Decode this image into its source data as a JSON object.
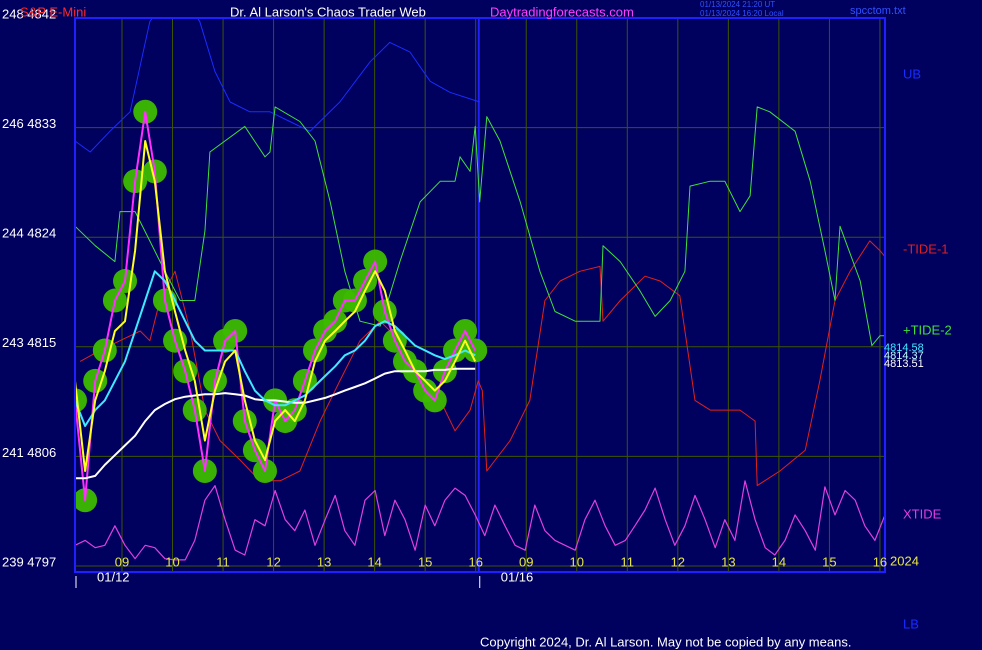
{
  "chart_data": {
    "type": "line",
    "instrument": "S&P E-Mini",
    "title": "Dr. Al Larson's Chaos Trader Web",
    "site": "Daytradingforecasts.com",
    "timestamps": [
      "01/13/2024 21:20 UT",
      "01/13/2024 16:20 Local"
    ],
    "file": "spcctom.txt",
    "copyright": "Copyright 2024, Dr. Al Larson. May not be copied by any means.",
    "year_label": "2024",
    "lower_label": "LB",
    "grid": true,
    "xlim": [
      -0.93,
      15.1
    ],
    "xticks": [
      {
        "value": 0,
        "label": "09"
      },
      {
        "value": 1,
        "label": "10"
      },
      {
        "value": 2,
        "label": "11"
      },
      {
        "value": 3,
        "label": "12"
      },
      {
        "value": 4,
        "label": "13"
      },
      {
        "value": 5,
        "label": "14"
      },
      {
        "value": 6,
        "label": "15"
      },
      {
        "value": 7,
        "label": "16"
      },
      {
        "value": 8,
        "label": "09"
      },
      {
        "value": 9,
        "label": "10"
      },
      {
        "value": 10,
        "label": "11"
      },
      {
        "value": 11,
        "label": "12"
      },
      {
        "value": 12,
        "label": "13"
      },
      {
        "value": 13,
        "label": "14"
      },
      {
        "value": 14,
        "label": "15"
      },
      {
        "value": 15,
        "label": "16"
      }
    ],
    "dates": [
      {
        "value": -0.93,
        "label": "01/12"
      },
      {
        "value": 7.06,
        "label": "01/16"
      }
    ],
    "ylim": [
      4797,
      4842
    ],
    "yticks": [
      {
        "value": 4842,
        "label": "248 4842"
      },
      {
        "value": 4833,
        "label": "246 4833"
      },
      {
        "value": 4824,
        "label": "244 4824"
      },
      {
        "value": 4815,
        "label": "243 4815"
      },
      {
        "value": 4806,
        "label": "241 4806"
      },
      {
        "value": 4797,
        "label": "239 4797"
      }
    ],
    "x": [
      -0.93,
      -0.73,
      -0.53,
      -0.34,
      -0.14,
      0.06,
      0.26,
      0.46,
      0.65,
      0.85,
      1.05,
      1.25,
      1.44,
      1.64,
      1.84,
      2.04,
      2.24,
      2.43,
      2.63,
      2.83,
      3.03,
      3.23,
      3.42,
      3.62,
      3.82,
      4.02,
      4.22,
      4.41,
      4.61,
      4.81,
      5.01,
      5.2,
      5.4,
      5.6,
      5.8,
      6.0,
      6.19,
      6.39,
      6.59,
      6.79,
      6.99
    ],
    "series": [
      {
        "name": "UB",
        "color": "#1a2cff",
        "x": [
          -0.93,
          -0.63,
          -0.24,
          0.16,
          0.55,
          0.75,
          1.35,
          1.54,
          1.84,
          2.14,
          2.53,
          2.93,
          3.32,
          3.72,
          4.31,
          4.91,
          5.3,
          5.7,
          6.1,
          6.49,
          7.08
        ],
        "values": [
          4831.9,
          4831.0,
          4832.7,
          4834.3,
          4841.7,
          4842.9,
          4842.9,
          4841.7,
          4837.6,
          4835.1,
          4834.3,
          4834.3,
          4833.5,
          4832.7,
          4835.1,
          4838.4,
          4840.0,
          4839.2,
          4836.8,
          4835.9,
          4835.1
        ]
      },
      {
        "name": "-TIDE-1",
        "color": "#e02020",
        "x": [
          -0.83,
          -0.44,
          -0.04,
          0.36,
          0.55,
          0.75,
          1.05,
          1.35,
          1.64,
          1.94,
          2.34,
          2.73,
          3.13,
          3.52,
          3.92,
          4.31,
          4.71,
          5.11,
          5.5,
          5.9,
          6.3,
          6.59,
          6.89,
          7.05,
          7.13,
          7.22,
          7.68,
          8.07,
          8.37,
          8.67,
          9.06,
          9.46,
          9.52,
          9.86,
          10.35,
          10.65,
          11.04,
          11.34,
          11.64,
          12.23,
          12.53,
          12.57,
          13.02,
          13.52,
          13.81,
          14.11,
          14.41,
          14.8,
          15.0,
          15.1
        ],
        "values": [
          4813.8,
          4814.7,
          4815.5,
          4816.3,
          4815.5,
          4818.8,
          4821.2,
          4816.3,
          4809.8,
          4807.3,
          4805.7,
          4804.0,
          4804.0,
          4804.8,
          4808.9,
          4812.2,
          4815.5,
          4817.1,
          4815.5,
          4812.2,
          4810.6,
          4808.1,
          4809.8,
          4812.2,
          4811.4,
          4804.8,
          4807.3,
          4810.6,
          4818.8,
          4820.4,
          4821.2,
          4821.6,
          4817.1,
          4818.8,
          4820.8,
          4820.4,
          4819.2,
          4810.6,
          4809.8,
          4809.8,
          4808.9,
          4803.6,
          4804.8,
          4806.5,
          4812.2,
          4818.8,
          4821.2,
          4823.7,
          4822.9,
          4822.4
        ]
      },
      {
        "name": "+TIDE-2",
        "color": "#40e040",
        "x": [
          -0.93,
          -0.53,
          -0.14,
          -0.04,
          0.26,
          0.55,
          0.85,
          1.15,
          1.44,
          1.64,
          1.74,
          2.43,
          2.83,
          2.93,
          3.03,
          3.52,
          3.82,
          4.12,
          4.41,
          4.71,
          5.11,
          5.5,
          5.9,
          6.3,
          6.59,
          6.69,
          6.89,
          6.99,
          7.08,
          7.22,
          7.48,
          7.88,
          8.27,
          8.57,
          8.97,
          9.46,
          9.52,
          9.86,
          10.25,
          10.55,
          10.85,
          11.14,
          11.24,
          11.64,
          11.93,
          12.23,
          12.43,
          12.57,
          12.82,
          13.32,
          13.62,
          13.91,
          14.11,
          14.21,
          14.61,
          14.84,
          15.0,
          15.1
        ],
        "values": [
          4824.9,
          4823.3,
          4822.0,
          4826.1,
          4826.1,
          4823.7,
          4821.2,
          4818.8,
          4818.8,
          4824.5,
          4831.0,
          4833.1,
          4830.6,
          4831.0,
          4834.7,
          4833.5,
          4831.9,
          4826.9,
          4821.2,
          4817.1,
          4816.7,
          4822.0,
          4826.9,
          4828.6,
          4828.6,
          4830.6,
          4829.4,
          4833.1,
          4826.9,
          4833.9,
          4831.9,
          4826.9,
          4821.2,
          4817.9,
          4817.1,
          4817.1,
          4823.3,
          4822.0,
          4819.6,
          4817.5,
          4818.8,
          4821.2,
          4828.2,
          4828.6,
          4828.6,
          4826.1,
          4827.4,
          4834.7,
          4834.3,
          4832.7,
          4828.6,
          4822.9,
          4818.8,
          4824.9,
          4820.4,
          4815.1,
          4815.9,
          4815.9
        ]
      },
      {
        "name": "XTIDE",
        "color": "#e040e0",
        "x": [
          -0.93,
          -0.73,
          -0.53,
          -0.34,
          -0.14,
          0.06,
          0.26,
          0.46,
          0.65,
          0.85,
          1.05,
          1.25,
          1.44,
          1.64,
          1.84,
          2.04,
          2.24,
          2.43,
          2.63,
          2.83,
          3.03,
          3.23,
          3.42,
          3.62,
          3.82,
          4.02,
          4.22,
          4.41,
          4.61,
          4.81,
          5.01,
          5.2,
          5.4,
          5.6,
          5.8,
          6.0,
          6.19,
          6.39,
          6.59,
          6.79,
          6.99,
          7.18,
          7.38,
          7.58,
          7.78,
          7.98,
          8.17,
          8.37,
          8.57,
          8.77,
          8.97,
          9.16,
          9.36,
          9.56,
          9.76,
          9.96,
          10.15,
          10.35,
          10.55,
          10.75,
          10.94,
          11.14,
          11.34,
          11.54,
          11.74,
          11.93,
          12.13,
          12.33,
          12.53,
          12.73,
          12.92,
          13.12,
          13.32,
          13.52,
          13.72,
          13.91,
          14.11,
          14.31,
          14.51,
          14.7,
          14.9,
          15.1
        ],
        "values": [
          4798.7,
          4799.1,
          4798.5,
          4798.7,
          4800.3,
          4798.7,
          4797.6,
          4798.7,
          4798.5,
          4797.6,
          4797.5,
          4797.5,
          4799.1,
          4802.4,
          4803.6,
          4800.8,
          4798.3,
          4797.9,
          4800.8,
          4800.3,
          4803.2,
          4800.8,
          4799.9,
          4801.6,
          4798.7,
          4800.8,
          4802.8,
          4799.9,
          4798.7,
          4802.4,
          4803.2,
          4799.5,
          4802.4,
          4800.8,
          4798.3,
          4802.0,
          4800.3,
          4802.4,
          4803.4,
          4802.8,
          4801.2,
          4799.5,
          4802.0,
          4800.3,
          4798.7,
          4798.3,
          4802.0,
          4799.9,
          4799.1,
          4798.7,
          4798.3,
          4800.8,
          4802.4,
          4800.3,
          4798.7,
          4799.1,
          4800.3,
          4801.6,
          4803.4,
          4800.8,
          4798.7,
          4800.3,
          4802.8,
          4800.8,
          4798.5,
          4800.8,
          4799.1,
          4804.0,
          4800.8,
          4798.5,
          4797.9,
          4799.1,
          4801.2,
          4799.9,
          4798.3,
          4803.5,
          4801.2,
          4803.2,
          4802.4,
          4800.3,
          4799.1,
          4801.2
        ]
      },
      {
        "color": "#ff30ff",
        "glow": "#3cba00",
        "values": [
          4810.6,
          4802.4,
          4812.2,
          4814.7,
          4818.8,
          4820.4,
          4828.6,
          4834.3,
          4829.4,
          4818.8,
          4815.5,
          4813.0,
          4809.8,
          4804.8,
          4812.2,
          4815.5,
          4816.3,
          4808.9,
          4806.5,
          4804.8,
          4810.6,
          4808.9,
          4809.8,
          4812.2,
          4814.7,
          4816.3,
          4817.1,
          4818.8,
          4818.8,
          4820.4,
          4822.0,
          4817.9,
          4815.5,
          4813.8,
          4813.0,
          4811.4,
          4810.6,
          4813.0,
          4814.7,
          4816.3,
          4814.7
        ]
      },
      {
        "color": "#ffffff",
        "values": [
          4804.2,
          4804.2,
          4804.4,
          4805.3,
          4806.1,
          4806.9,
          4807.7,
          4808.9,
          4809.8,
          4810.3,
          4810.7,
          4810.9,
          4811.0,
          4811.1,
          4811.1,
          4811.2,
          4811.1,
          4811.0,
          4810.7,
          4810.6,
          4810.6,
          4810.5,
          4810.4,
          4810.4,
          4810.6,
          4810.8,
          4811.1,
          4811.4,
          4811.7,
          4812.0,
          4812.4,
          4812.8,
          4813.0,
          4813.0,
          4813.0,
          4813.0,
          4813.1,
          4813.1,
          4813.2,
          4813.2,
          4813.2
        ]
      },
      {
        "color": "#40e8ff",
        "values": [
          4810.6,
          4808.5,
          4809.8,
          4810.6,
          4812.2,
          4813.8,
          4816.3,
          4818.8,
          4821.2,
          4820.4,
          4818.8,
          4817.1,
          4815.5,
          4814.7,
          4814.7,
          4814.7,
          4814.7,
          4813.0,
          4811.4,
          4810.6,
          4810.2,
          4810.2,
          4810.6,
          4811.0,
          4811.8,
          4812.6,
          4813.4,
          4814.3,
          4814.7,
          4815.5,
          4816.7,
          4817.1,
          4816.7,
          4815.9,
          4815.1,
          4814.7,
          4814.3,
          4814.0,
          4814.3,
          4814.7,
          4814.3
        ]
      },
      {
        "color": "#ffff20",
        "values": [
          4812.2,
          4804.8,
          4810.6,
          4813.0,
          4816.3,
          4817.1,
          4822.9,
          4831.9,
          4828.6,
          4821.2,
          4817.9,
          4814.7,
          4812.2,
          4807.3,
          4811.4,
          4813.8,
          4814.7,
          4810.6,
          4807.3,
          4805.7,
          4808.9,
          4809.8,
          4808.9,
          4810.6,
          4813.8,
          4815.5,
          4816.3,
          4817.1,
          4817.9,
          4819.6,
          4821.2,
          4819.6,
          4816.3,
          4814.7,
          4813.0,
          4812.2,
          4811.4,
          4812.2,
          4813.8,
          4815.5,
          4813.8
        ]
      }
    ],
    "annotations": [
      {
        "text": "4814.58",
        "color": "#40e8ff"
      },
      {
        "text": "4814.37",
        "color": "#c0ffff"
      },
      {
        "text": "4813.51",
        "color": "#ffffff"
      }
    ]
  }
}
